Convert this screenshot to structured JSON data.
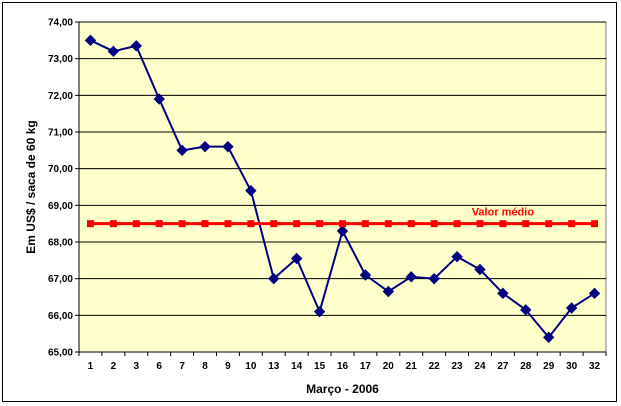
{
  "chart_data": {
    "type": "line",
    "title": "",
    "xlabel": "Março - 2006",
    "ylabel": "Em US$ / saca de 60 kg",
    "ylim": [
      65.0,
      74.0
    ],
    "y_ticks": [
      "65,00",
      "66,00",
      "67,00",
      "68,00",
      "69,00",
      "70,00",
      "71,00",
      "72,00",
      "73,00",
      "74,00"
    ],
    "categories": [
      "1",
      "2",
      "3",
      "6",
      "7",
      "8",
      "9",
      "10",
      "13",
      "14",
      "15",
      "16",
      "17",
      "20",
      "21",
      "22",
      "23",
      "24",
      "27",
      "28",
      "29",
      "30",
      "32"
    ],
    "grid": true,
    "plot_background": "#ffffcc",
    "series": [
      {
        "color": "#000080",
        "marker": "diamond",
        "values": [
          73.5,
          73.2,
          73.35,
          71.9,
          70.5,
          70.6,
          70.6,
          69.4,
          67.0,
          67.55,
          66.1,
          68.3,
          67.1,
          66.65,
          67.05,
          67.0,
          67.6,
          67.25,
          66.6,
          66.15,
          65.4,
          66.2,
          66.6
        ]
      },
      {
        "color": "#ff0000",
        "marker": "square",
        "values": [
          68.5,
          68.5,
          68.5,
          68.5,
          68.5,
          68.5,
          68.5,
          68.5,
          68.5,
          68.5,
          68.5,
          68.5,
          68.5,
          68.5,
          68.5,
          68.5,
          68.5,
          68.5,
          68.5,
          68.5,
          68.5,
          68.5,
          68.5
        ]
      }
    ],
    "annotations": [
      {
        "text": "Valor médio",
        "color": "#ff0000"
      }
    ]
  }
}
